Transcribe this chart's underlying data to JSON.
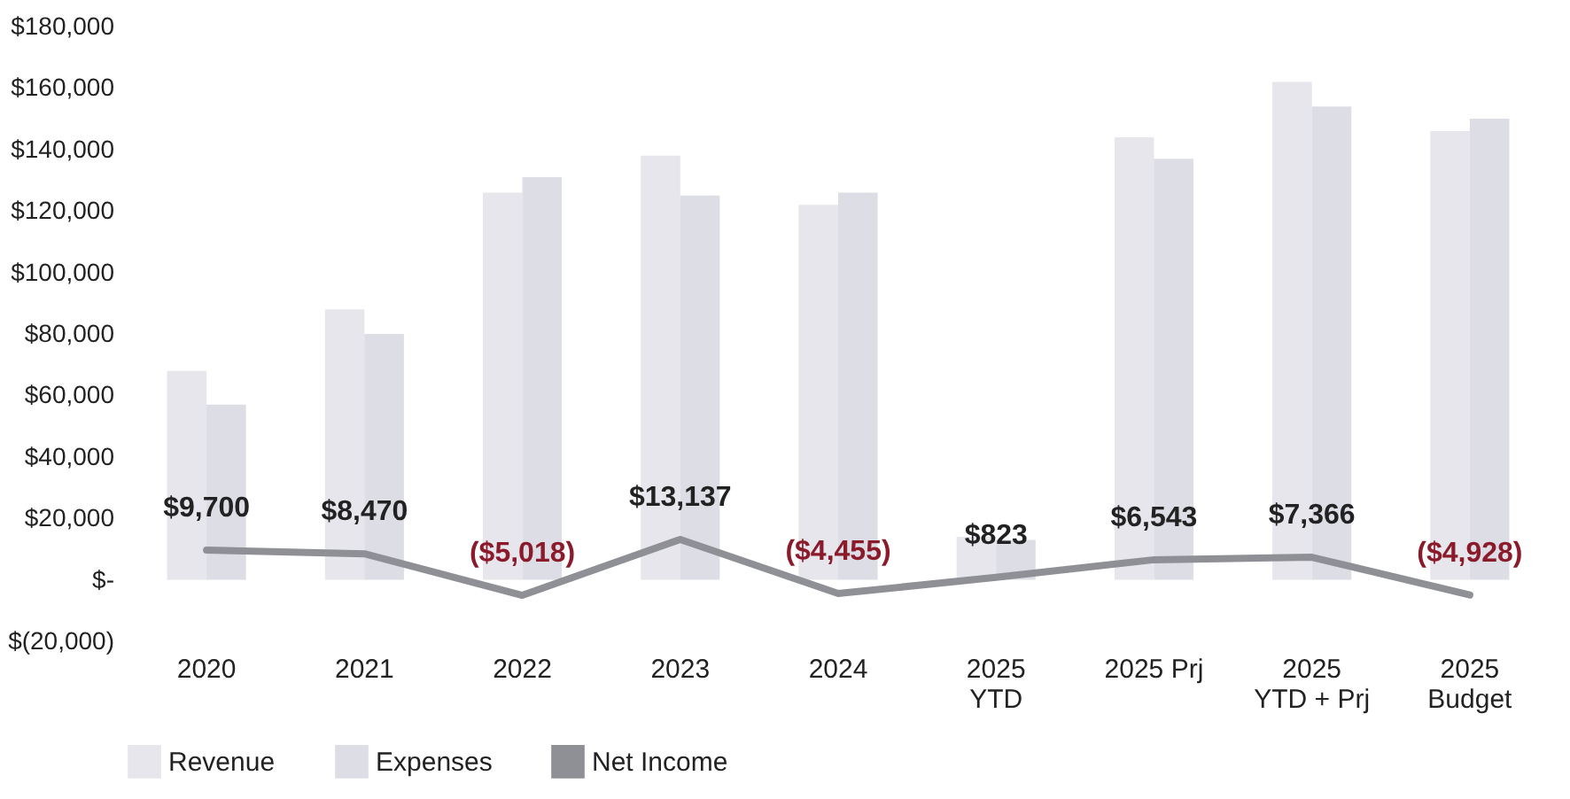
{
  "chart_data": {
    "type": "bar",
    "categories": [
      "2020",
      "2021",
      "2022",
      "2023",
      "2024",
      "2025\nYTD",
      "2025 Prj",
      "2025\nYTD + Prj",
      "2025\nBudget"
    ],
    "series": [
      {
        "name": "Revenue",
        "color": "#e6e6ec",
        "values": [
          68000,
          88000,
          126000,
          138000,
          122000,
          14000,
          144000,
          162000,
          146000
        ]
      },
      {
        "name": "Expenses",
        "color": "#dcdde5",
        "values": [
          57000,
          80000,
          131000,
          125000,
          126000,
          13000,
          137000,
          154000,
          150000
        ]
      },
      {
        "name": "Net Income",
        "type": "line",
        "color": "#8e9096",
        "values": [
          9700,
          8470,
          -5018,
          13137,
          -4455,
          823,
          6543,
          7366,
          -4928
        ],
        "value_labels": [
          "$9,700",
          "$8,470",
          "($5,018)",
          "$13,137",
          "($4,455)",
          "$823",
          "$6,543",
          "$7,366",
          "($4,928)"
        ]
      }
    ],
    "ylim": [
      -20000,
      180000
    ],
    "yticks": [
      {
        "value": -20000,
        "label": "$(20,000)"
      },
      {
        "value": 0,
        "label": "$-"
      },
      {
        "value": 20000,
        "label": "$20,000"
      },
      {
        "value": 40000,
        "label": "$40,000"
      },
      {
        "value": 60000,
        "label": "$60,000"
      },
      {
        "value": 80000,
        "label": "$80,000"
      },
      {
        "value": 100000,
        "label": "$100,000"
      },
      {
        "value": 120000,
        "label": "$120,000"
      },
      {
        "value": 140000,
        "label": "$140,000"
      },
      {
        "value": 160000,
        "label": "$160,000"
      },
      {
        "value": 180000,
        "label": "$180,000"
      }
    ],
    "grid": false,
    "legend": "bottom",
    "line_style": "solid",
    "marker": "none"
  }
}
